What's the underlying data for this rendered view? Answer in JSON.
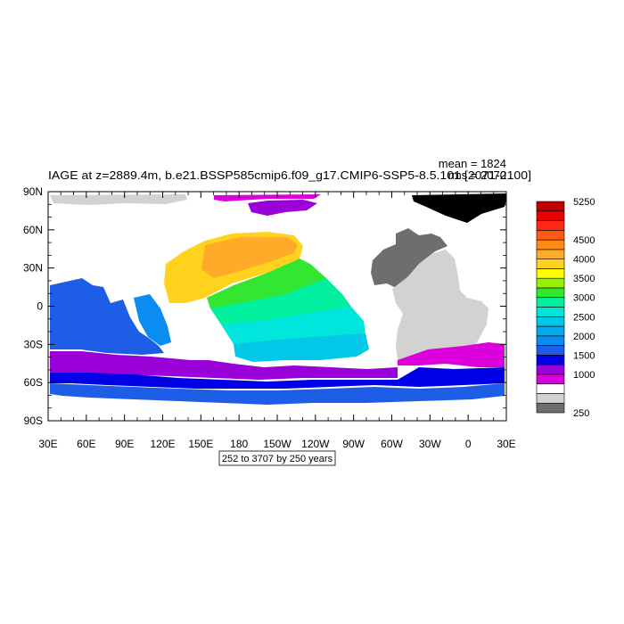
{
  "chart_data": {
    "type": "heatmap",
    "title": "IAGE at z=2889.4m, b.e21.BSSP585cmip6.f09_g17.CMIP6-SSP5-8.5.101 [2071-2100]",
    "stats": {
      "mean": "mean = 1824",
      "rms": "rms = 2070"
    },
    "subtitle_box": "252 to 3707 by 250 years",
    "x_ticks": [
      "30E",
      "60E",
      "90E",
      "120E",
      "150E",
      "180",
      "150W",
      "120W",
      "90W",
      "60W",
      "30W",
      "0",
      "30E"
    ],
    "y_ticks": [
      "90N",
      "60N",
      "30N",
      "0",
      "30S",
      "60S",
      "90S"
    ],
    "colorbar": {
      "levels": [
        250,
        500,
        750,
        1000,
        1250,
        1500,
        1750,
        2000,
        2250,
        2500,
        2750,
        3000,
        3250,
        3500,
        3750,
        4000,
        4250,
        4500,
        4750,
        5000,
        5250
      ],
      "labels": [
        "250",
        "1000",
        "1500",
        "2000",
        "2500",
        "3000",
        "3500",
        "4000",
        "4500",
        "5250"
      ],
      "colors": [
        "#6e6e6e",
        "#d2d2d2",
        "#ffffff",
        "#dc00dc",
        "#9a00d8",
        "#0000e6",
        "#1e5ee6",
        "#0a8cf0",
        "#00aaf0",
        "#00c8e6",
        "#00e6dc",
        "#00f0a0",
        "#32e632",
        "#96f000",
        "#ffff00",
        "#ffd21e",
        "#ffaa28",
        "#ff8c14",
        "#ff5a14",
        "#ff2814",
        "#e60000",
        "#be0000"
      ]
    },
    "fields": {
      "arctic_left": "#d2d2d2",
      "arctic_mid": "#9a00d8",
      "arctic_magenta": "#dc00dc",
      "atlantic_north": "#6e6e6e",
      "atlantic_south": "#d2d2d2",
      "pacific_north": "#ffd21e",
      "pacific_warm": "#ffaa28",
      "pacific_eq": "#32e632",
      "pacific_mid": "#00f0a0",
      "pacific_south": "#00e6dc",
      "pacific_sub": "#00c8e6",
      "southern_outer": "#1e5ee6",
      "southern_blue": "#0000e6",
      "southern_violet": "#9a00d8",
      "indian": "#1e5ee6",
      "indian_light": "#0a8cf0",
      "atlantic_magenta": "#dc00dc"
    }
  }
}
